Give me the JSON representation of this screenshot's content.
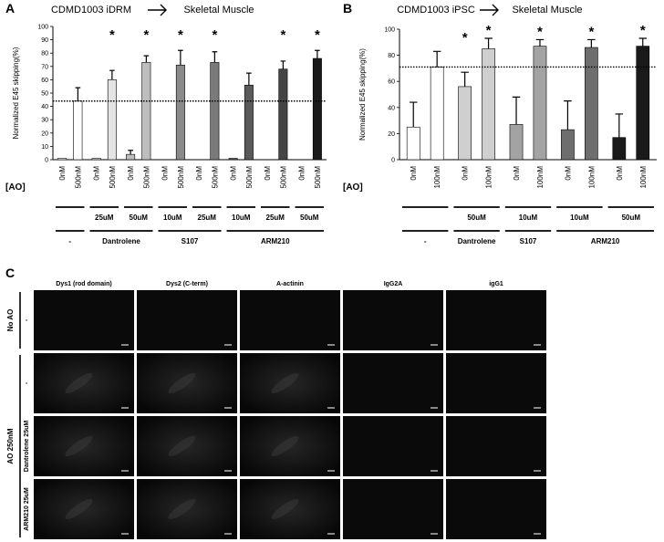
{
  "chart_data": [
    {
      "type": "bar",
      "panel": "A",
      "title": "CDMD1003 iDRM",
      "title_target": "Skeletal Muscle",
      "y_label": "Normalized E45 skipping(%)",
      "x_label": "[AO]",
      "categories": [
        "0nM",
        "500nM",
        "0nM",
        "500nM",
        "0nM",
        "500nM",
        "0nM",
        "500nM",
        "0nM",
        "500nM",
        "0nM",
        "500nM",
        "0nM",
        "500nM",
        "0nM",
        "500nM"
      ],
      "values": [
        1,
        44,
        1,
        60,
        4,
        73,
        0,
        71,
        0,
        73,
        1,
        56,
        0,
        68,
        0,
        76
      ],
      "errors": [
        null,
        10,
        null,
        7,
        3,
        5,
        null,
        11,
        null,
        8,
        null,
        9,
        null,
        6,
        null,
        6
      ],
      "colors": [
        "#ffffff",
        "#ffffff",
        "#e3e3e3",
        "#e3e3e3",
        "#bdbdbd",
        "#bdbdbd",
        "#8a8a8a",
        "#8a8a8a",
        "#7a7a7a",
        "#7a7a7a",
        "#5a5a5a",
        "#5a5a5a",
        "#444444",
        "#444444",
        "#1a1a1a",
        "#1a1a1a"
      ],
      "markers": [
        null,
        null,
        null,
        "*",
        null,
        "*",
        null,
        "*",
        null,
        "*",
        null,
        null,
        null,
        "*",
        null,
        "*"
      ],
      "reference_line": 44,
      "ylim": [
        0,
        100
      ],
      "yticks": [
        0,
        10,
        20,
        30,
        40,
        50,
        60,
        70,
        80,
        90,
        100
      ],
      "dose_labels": [
        null,
        "25uM",
        "50uM",
        "10uM",
        "25uM",
        "10uM",
        "25uM",
        "50uM"
      ],
      "treatments": [
        {
          "label": "-",
          "groups": [
            0,
            0
          ]
        },
        {
          "label": "Dantrolene",
          "groups": [
            1,
            2
          ]
        },
        {
          "label": "S107",
          "groups": [
            3,
            4
          ]
        },
        {
          "label": "ARM210",
          "groups": [
            5,
            7
          ]
        }
      ]
    },
    {
      "type": "bar",
      "panel": "B",
      "title": "CDMD1003 iPSC",
      "title_target": "Skeletal Muscle",
      "y_label": "Normalized E45 skipping(%)",
      "x_label": "[AO]",
      "categories": [
        "0nM",
        "100nM",
        "0nM",
        "100nM",
        "0nM",
        "100nM",
        "0nM",
        "100nM",
        "0nM",
        "100nM"
      ],
      "values": [
        25,
        71,
        56,
        85,
        27,
        87,
        23,
        86,
        17,
        87
      ],
      "errors": [
        19,
        12,
        11,
        8,
        21,
        5,
        22,
        6,
        18,
        6
      ],
      "colors": [
        "#ffffff",
        "#ffffff",
        "#cfcfcf",
        "#cfcfcf",
        "#a3a3a3",
        "#a3a3a3",
        "#6e6e6e",
        "#6e6e6e",
        "#1a1a1a",
        "#1a1a1a"
      ],
      "markers": [
        null,
        null,
        "*",
        "*",
        null,
        "*",
        null,
        "*",
        null,
        "*"
      ],
      "reference_line": 71,
      "ylim": [
        0,
        100
      ],
      "yticks": [
        0,
        20,
        40,
        60,
        80,
        100
      ],
      "dose_labels": [
        null,
        "50uM",
        "10uM",
        "10uM",
        "50uM"
      ],
      "treatments": [
        {
          "label": "-",
          "groups": [
            0,
            0
          ]
        },
        {
          "label": "Dantrolene",
          "groups": [
            1,
            1
          ]
        },
        {
          "label": "S107",
          "groups": [
            2,
            2
          ]
        },
        {
          "label": "ARM210",
          "groups": [
            3,
            4
          ]
        }
      ]
    }
  ],
  "panel_c": {
    "panel": "C",
    "columns": [
      "Dys1 (rod domain)",
      "Dys2 (C-term)",
      "A-actinin",
      "IgG2A",
      "igG1"
    ],
    "row_groups": [
      {
        "label": "No AO",
        "rows": [
          "-"
        ]
      },
      {
        "label": "AO 250nM",
        "rows": [
          "-",
          "Dantrolene 25uM",
          "ARM210 25uM"
        ]
      }
    ]
  }
}
